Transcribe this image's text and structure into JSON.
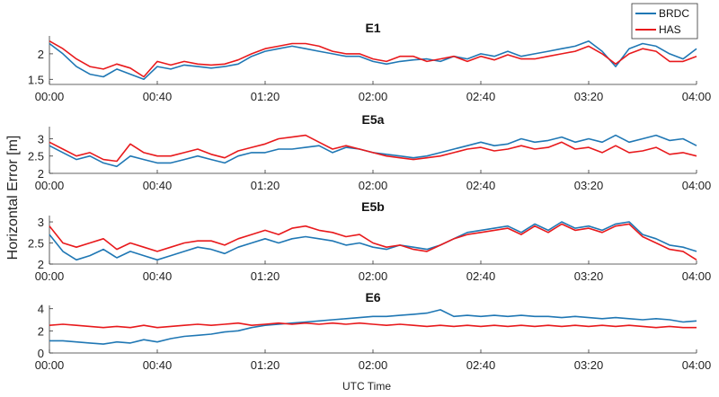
{
  "chart_data": {
    "type": "line",
    "ylabel": "Horizontal Error [m]",
    "xlabel": "UTC Time",
    "colors": {
      "BRDC": "#1f77b4",
      "HAS": "#e8191c"
    },
    "legend": {
      "position": "top-right",
      "entries": [
        "BRDC",
        "HAS"
      ]
    },
    "x_ticks": [
      "00:00",
      "00:40",
      "01:20",
      "02:00",
      "02:40",
      "03:20",
      "04:00"
    ],
    "x_range_minutes": [
      0,
      240
    ],
    "panels": [
      {
        "title": "E1",
        "ylim": [
          1.4,
          2.35
        ],
        "y_ticks": [
          1.5,
          2
        ],
        "y_tick_labels": [
          "1.5",
          "2"
        ],
        "series": [
          {
            "name": "BRDC",
            "times": [
              0,
              5,
              10,
              15,
              20,
              25,
              30,
              35,
              40,
              45,
              50,
              55,
              60,
              65,
              70,
              75,
              80,
              85,
              90,
              95,
              100,
              105,
              110,
              115,
              120,
              125,
              130,
              135,
              140,
              145,
              150,
              155,
              160,
              165,
              170,
              175,
              180,
              185,
              190,
              195,
              200,
              205,
              210,
              215,
              220,
              225,
              230,
              235,
              240
            ],
            "values": [
              2.2,
              2.0,
              1.75,
              1.6,
              1.55,
              1.7,
              1.6,
              1.5,
              1.75,
              1.7,
              1.78,
              1.75,
              1.72,
              1.75,
              1.8,
              1.95,
              2.05,
              2.1,
              2.15,
              2.1,
              2.05,
              2.0,
              1.95,
              1.95,
              1.85,
              1.8,
              1.85,
              1.88,
              1.9,
              1.85,
              1.95,
              1.9,
              2.0,
              1.95,
              2.05,
              1.95,
              2.0,
              2.05,
              2.1,
              2.15,
              2.25,
              2.05,
              1.75,
              2.1,
              2.2,
              2.15,
              2.0,
              1.9,
              2.1
            ]
          },
          {
            "name": "HAS",
            "times": [
              0,
              5,
              10,
              15,
              20,
              25,
              30,
              35,
              40,
              45,
              50,
              55,
              60,
              65,
              70,
              75,
              80,
              85,
              90,
              95,
              100,
              105,
              110,
              115,
              120,
              125,
              130,
              135,
              140,
              145,
              150,
              155,
              160,
              165,
              170,
              175,
              180,
              185,
              190,
              195,
              200,
              205,
              210,
              215,
              220,
              225,
              230,
              235,
              240
            ],
            "values": [
              2.25,
              2.1,
              1.9,
              1.75,
              1.7,
              1.8,
              1.72,
              1.55,
              1.85,
              1.78,
              1.85,
              1.8,
              1.78,
              1.8,
              1.88,
              2.0,
              2.1,
              2.15,
              2.2,
              2.2,
              2.15,
              2.05,
              2.0,
              2.0,
              1.9,
              1.85,
              1.95,
              1.95,
              1.85,
              1.9,
              1.95,
              1.85,
              1.95,
              1.88,
              1.98,
              1.9,
              1.9,
              1.95,
              2.0,
              2.05,
              2.15,
              2.0,
              1.8,
              2.0,
              2.1,
              2.05,
              1.85,
              1.85,
              1.95
            ]
          }
        ]
      },
      {
        "title": "E5a",
        "ylim": [
          2.0,
          3.35
        ],
        "y_ticks": [
          2,
          2.5,
          3
        ],
        "y_tick_labels": [
          "2",
          "2.5",
          "3"
        ],
        "series": [
          {
            "name": "BRDC",
            "times": [
              0,
              5,
              10,
              15,
              20,
              25,
              30,
              35,
              40,
              45,
              50,
              55,
              60,
              65,
              70,
              75,
              80,
              85,
              90,
              95,
              100,
              105,
              110,
              115,
              120,
              125,
              130,
              135,
              140,
              145,
              150,
              155,
              160,
              165,
              170,
              175,
              180,
              185,
              190,
              195,
              200,
              205,
              210,
              215,
              220,
              225,
              230,
              235,
              240
            ],
            "values": [
              2.8,
              2.6,
              2.4,
              2.5,
              2.3,
              2.2,
              2.5,
              2.4,
              2.3,
              2.3,
              2.4,
              2.5,
              2.4,
              2.3,
              2.5,
              2.6,
              2.6,
              2.7,
              2.7,
              2.75,
              2.8,
              2.6,
              2.75,
              2.7,
              2.6,
              2.55,
              2.5,
              2.45,
              2.5,
              2.6,
              2.7,
              2.8,
              2.9,
              2.8,
              2.85,
              3.0,
              2.9,
              2.95,
              3.05,
              2.9,
              3.0,
              2.9,
              3.1,
              2.9,
              3.0,
              3.1,
              2.95,
              3.0,
              2.8
            ]
          },
          {
            "name": "HAS",
            "times": [
              0,
              5,
              10,
              15,
              20,
              25,
              30,
              35,
              40,
              45,
              50,
              55,
              60,
              65,
              70,
              75,
              80,
              85,
              90,
              95,
              100,
              105,
              110,
              115,
              120,
              125,
              130,
              135,
              140,
              145,
              150,
              155,
              160,
              165,
              170,
              175,
              180,
              185,
              190,
              195,
              200,
              205,
              210,
              215,
              220,
              225,
              230,
              235,
              240
            ],
            "values": [
              2.9,
              2.7,
              2.5,
              2.6,
              2.4,
              2.35,
              2.85,
              2.6,
              2.5,
              2.5,
              2.6,
              2.7,
              2.55,
              2.45,
              2.65,
              2.75,
              2.85,
              3.0,
              3.05,
              3.1,
              2.9,
              2.7,
              2.8,
              2.7,
              2.6,
              2.5,
              2.45,
              2.4,
              2.45,
              2.5,
              2.6,
              2.7,
              2.75,
              2.65,
              2.7,
              2.8,
              2.7,
              2.75,
              2.9,
              2.7,
              2.75,
              2.6,
              2.8,
              2.6,
              2.65,
              2.75,
              2.55,
              2.6,
              2.5
            ]
          }
        ]
      },
      {
        "title": "E5b",
        "ylim": [
          2.0,
          3.15
        ],
        "y_ticks": [
          2,
          2.5,
          3
        ],
        "y_tick_labels": [
          "2",
          "2.5",
          "3"
        ],
        "series": [
          {
            "name": "BRDC",
            "times": [
              0,
              5,
              10,
              15,
              20,
              25,
              30,
              35,
              40,
              45,
              50,
              55,
              60,
              65,
              70,
              75,
              80,
              85,
              90,
              95,
              100,
              105,
              110,
              115,
              120,
              125,
              130,
              135,
              140,
              145,
              150,
              155,
              160,
              165,
              170,
              175,
              180,
              185,
              190,
              195,
              200,
              205,
              210,
              215,
              220,
              225,
              230,
              235,
              240
            ],
            "values": [
              2.7,
              2.3,
              2.1,
              2.2,
              2.35,
              2.15,
              2.3,
              2.2,
              2.1,
              2.2,
              2.3,
              2.4,
              2.35,
              2.25,
              2.4,
              2.5,
              2.6,
              2.5,
              2.6,
              2.65,
              2.6,
              2.55,
              2.45,
              2.5,
              2.4,
              2.35,
              2.45,
              2.4,
              2.35,
              2.45,
              2.6,
              2.75,
              2.8,
              2.85,
              2.9,
              2.75,
              2.95,
              2.8,
              3.0,
              2.85,
              2.9,
              2.8,
              2.95,
              3.0,
              2.7,
              2.6,
              2.45,
              2.4,
              2.3
            ]
          },
          {
            "name": "HAS",
            "times": [
              0,
              5,
              10,
              15,
              20,
              25,
              30,
              35,
              40,
              45,
              50,
              55,
              60,
              65,
              70,
              75,
              80,
              85,
              90,
              95,
              100,
              105,
              110,
              115,
              120,
              125,
              130,
              135,
              140,
              145,
              150,
              155,
              160,
              165,
              170,
              175,
              180,
              185,
              190,
              195,
              200,
              205,
              210,
              215,
              220,
              225,
              230,
              235,
              240
            ],
            "values": [
              2.9,
              2.5,
              2.4,
              2.5,
              2.6,
              2.35,
              2.5,
              2.4,
              2.3,
              2.4,
              2.5,
              2.55,
              2.55,
              2.45,
              2.6,
              2.7,
              2.8,
              2.7,
              2.85,
              2.9,
              2.8,
              2.75,
              2.65,
              2.7,
              2.5,
              2.4,
              2.45,
              2.35,
              2.3,
              2.45,
              2.6,
              2.7,
              2.75,
              2.8,
              2.85,
              2.7,
              2.9,
              2.75,
              2.95,
              2.8,
              2.85,
              2.75,
              2.9,
              2.95,
              2.65,
              2.5,
              2.35,
              2.3,
              2.1
            ]
          }
        ]
      },
      {
        "title": "E6",
        "ylim": [
          0,
          4.3
        ],
        "y_ticks": [
          0,
          2,
          4
        ],
        "y_tick_labels": [
          "0",
          "2",
          "4"
        ],
        "series": [
          {
            "name": "BRDC",
            "times": [
              0,
              5,
              10,
              15,
              20,
              25,
              30,
              35,
              40,
              45,
              50,
              55,
              60,
              65,
              70,
              75,
              80,
              85,
              90,
              95,
              100,
              105,
              110,
              115,
              120,
              125,
              130,
              135,
              140,
              145,
              150,
              155,
              160,
              165,
              170,
              175,
              180,
              185,
              190,
              195,
              200,
              205,
              210,
              215,
              220,
              225,
              230,
              235,
              240
            ],
            "values": [
              1.1,
              1.1,
              1.0,
              0.9,
              0.8,
              1.0,
              0.9,
              1.2,
              1.0,
              1.3,
              1.5,
              1.6,
              1.7,
              1.9,
              2.0,
              2.3,
              2.5,
              2.6,
              2.7,
              2.8,
              2.9,
              3.0,
              3.1,
              3.2,
              3.3,
              3.3,
              3.4,
              3.5,
              3.6,
              3.9,
              3.3,
              3.4,
              3.3,
              3.4,
              3.3,
              3.4,
              3.3,
              3.3,
              3.2,
              3.3,
              3.2,
              3.1,
              3.2,
              3.1,
              3.0,
              3.1,
              3.0,
              2.8,
              2.9
            ]
          },
          {
            "name": "HAS",
            "times": [
              0,
              5,
              10,
              15,
              20,
              25,
              30,
              35,
              40,
              45,
              50,
              55,
              60,
              65,
              70,
              75,
              80,
              85,
              90,
              95,
              100,
              105,
              110,
              115,
              120,
              125,
              130,
              135,
              140,
              145,
              150,
              155,
              160,
              165,
              170,
              175,
              180,
              185,
              190,
              195,
              200,
              205,
              210,
              215,
              220,
              225,
              230,
              235,
              240
            ],
            "values": [
              2.5,
              2.6,
              2.5,
              2.4,
              2.3,
              2.4,
              2.3,
              2.5,
              2.3,
              2.4,
              2.5,
              2.6,
              2.5,
              2.6,
              2.7,
              2.5,
              2.6,
              2.7,
              2.6,
              2.7,
              2.6,
              2.7,
              2.6,
              2.7,
              2.6,
              2.5,
              2.6,
              2.5,
              2.4,
              2.5,
              2.4,
              2.5,
              2.4,
              2.5,
              2.4,
              2.5,
              2.4,
              2.5,
              2.4,
              2.5,
              2.4,
              2.5,
              2.4,
              2.5,
              2.4,
              2.3,
              2.4,
              2.3,
              2.3
            ]
          }
        ]
      }
    ]
  }
}
